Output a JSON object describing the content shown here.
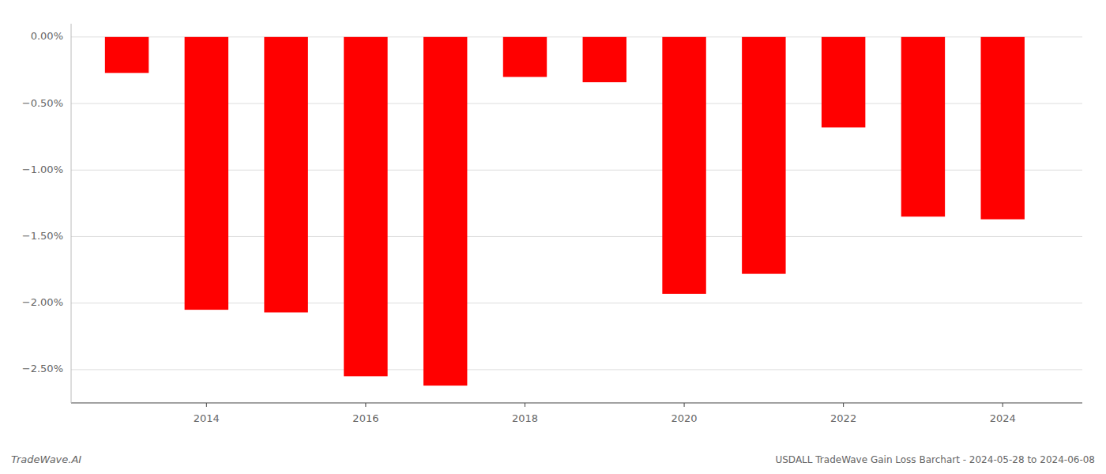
{
  "chart_data": {
    "type": "bar",
    "title": "USDALL TradeWave Gain Loss Barchart - 2024-05-28 to 2024-06-08",
    "annotations": [
      "TradeWave.AI"
    ],
    "x": [
      2013,
      2014,
      2015,
      2016,
      2017,
      2018,
      2019,
      2020,
      2021,
      2022,
      2023,
      2024
    ],
    "values": [
      -0.27,
      -2.05,
      -2.07,
      -2.55,
      -2.62,
      -0.3,
      -0.34,
      -1.93,
      -1.78,
      -0.68,
      -1.35,
      -1.37
    ],
    "color": "#ff0000",
    "xlim": [
      2012.3,
      2025.0
    ],
    "xticks": [
      2014,
      2016,
      2018,
      2020,
      2022,
      2024
    ],
    "ylim": [
      -2.75,
      0.1
    ],
    "yticks": [
      {
        "value": 0.0,
        "label": "0.00%"
      },
      {
        "value": -0.5,
        "label": "−0.50%"
      },
      {
        "value": -1.0,
        "label": "−1.00%"
      },
      {
        "value": -1.5,
        "label": "−1.50%"
      },
      {
        "value": -2.0,
        "label": "−2.00%"
      },
      {
        "value": -2.5,
        "label": "−2.50%"
      }
    ],
    "grid": true
  }
}
